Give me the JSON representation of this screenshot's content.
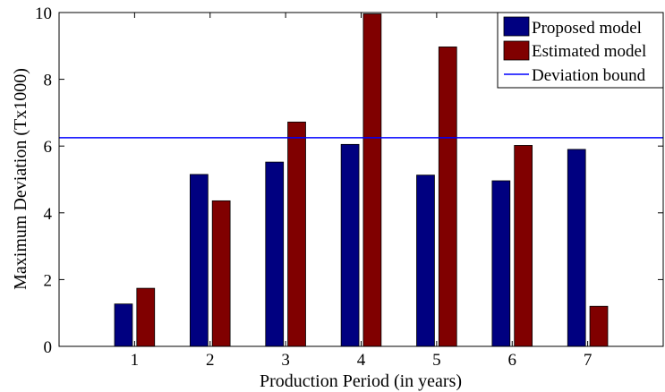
{
  "chart_data": {
    "type": "bar",
    "title": "",
    "xlabel": "Production Period (in years)",
    "ylabel": "Maximum Deviation (Tx1000)",
    "categories": [
      "1",
      "2",
      "3",
      "4",
      "5",
      "6",
      "7"
    ],
    "series": [
      {
        "name": "Proposed model",
        "color": "#000080",
        "values": [
          1.27,
          5.15,
          5.52,
          6.05,
          5.13,
          4.96,
          5.9
        ]
      },
      {
        "name": "Estimated model",
        "color": "#800000",
        "values": [
          1.74,
          4.36,
          6.72,
          9.96,
          8.97,
          6.02,
          1.2
        ]
      }
    ],
    "reference_line": {
      "name": "Deviation bound",
      "color": "#0000ff",
      "value": 6.25
    },
    "xlim": [
      0,
      8
    ],
    "ylim": [
      0,
      10
    ],
    "yticks": [
      0,
      2,
      4,
      6,
      8,
      10
    ],
    "grid": false,
    "legend": "top-right"
  }
}
